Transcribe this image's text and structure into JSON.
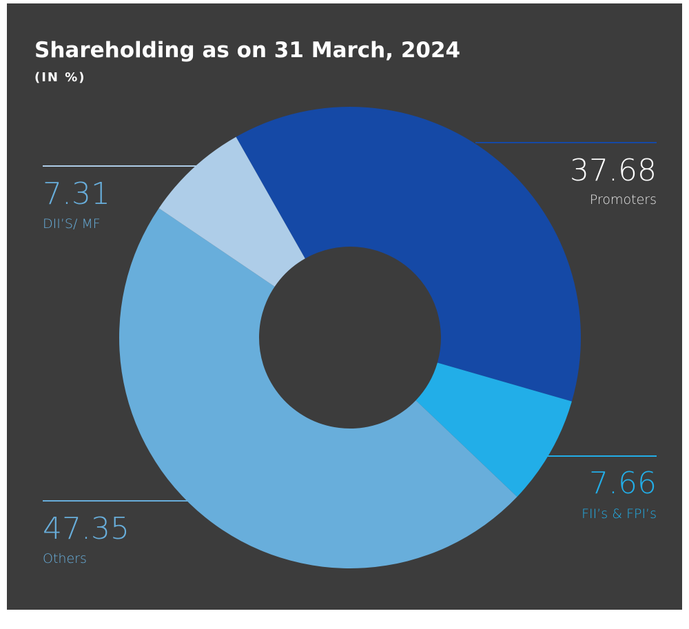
{
  "chart_data": {
    "type": "donut",
    "title": "Shareholding as on 31 March, 2024",
    "subtitle": "(IN %)",
    "categories": [
      "Promoters",
      "FII’s & FPI’s",
      "Others",
      "DII’S/ MF"
    ],
    "values": [
      37.68,
      7.66,
      47.35,
      7.31
    ],
    "colors": [
      "#1549a6",
      "#22aee8",
      "#68aedb",
      "#aecde8"
    ]
  }
}
